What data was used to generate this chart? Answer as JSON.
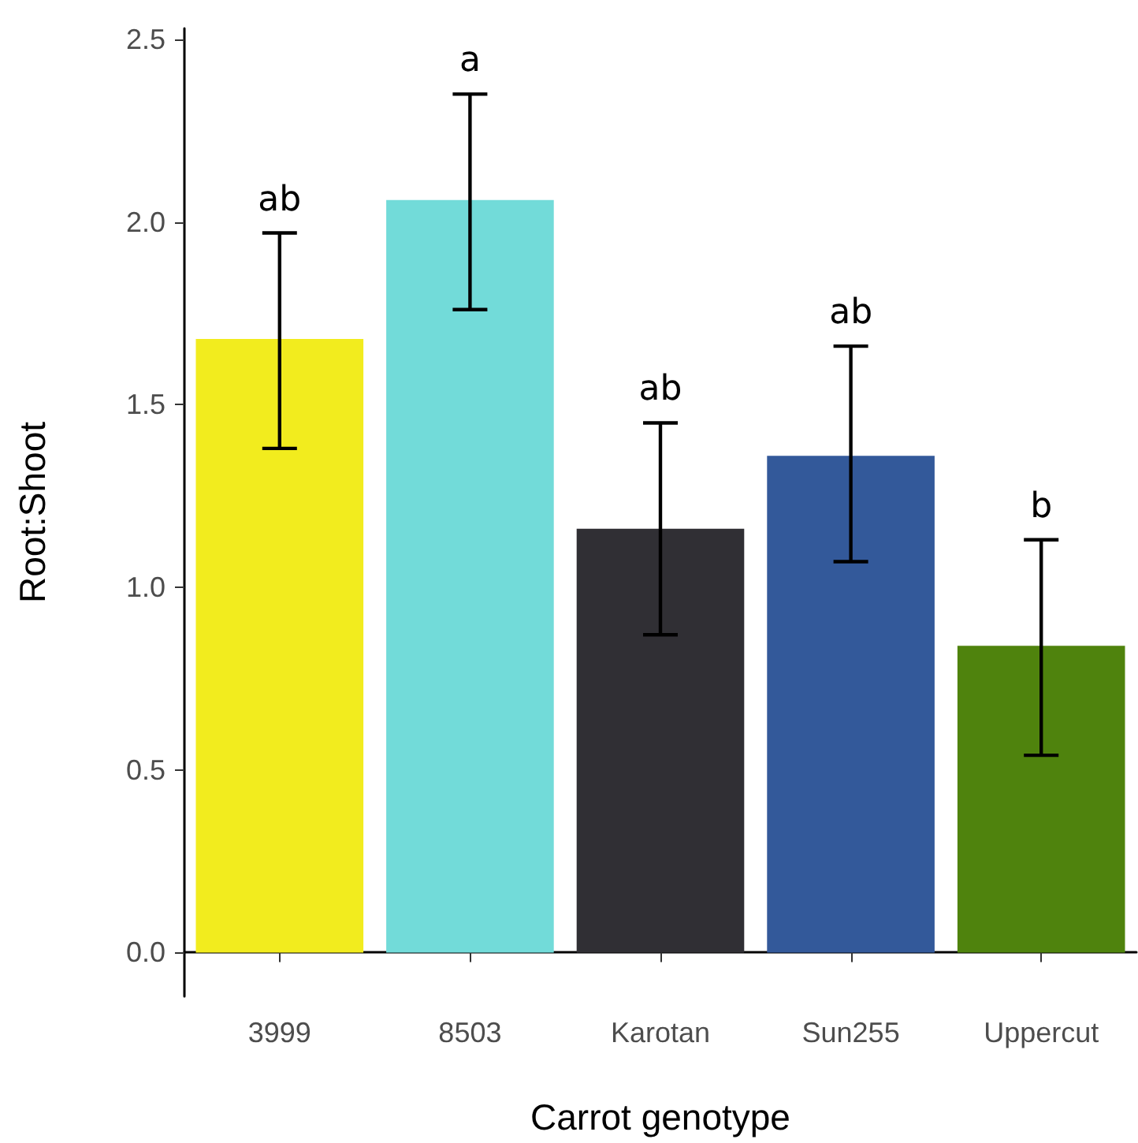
{
  "chart_data": {
    "type": "bar",
    "xlabel": "Carrot genotype",
    "ylabel": "Root:Shoot",
    "categories": [
      "3999",
      "8503",
      "Karotan",
      "Sun255",
      "Uppercut"
    ],
    "values": [
      1.68,
      2.06,
      1.16,
      1.36,
      0.84
    ],
    "colors": [
      "#f2ec1e",
      "#72dbd9",
      "#302f34",
      "#33599a",
      "#4f830d"
    ],
    "errors": [
      [
        1.38,
        1.97
      ],
      [
        1.76,
        2.35
      ],
      [
        0.87,
        1.45
      ],
      [
        1.07,
        1.66
      ],
      [
        0.54,
        1.13
      ]
    ],
    "ylim": [
      -0.12,
      2.53
    ],
    "yticks": [
      {
        "value": 0,
        "label": "0.0"
      },
      {
        "value": 0.5,
        "label": "0.5"
      },
      {
        "value": 1,
        "label": "1.0"
      },
      {
        "value": 1.5,
        "label": "1.5"
      },
      {
        "value": 2,
        "label": "2.0"
      },
      {
        "value": 2.5,
        "label": "2.5"
      }
    ],
    "grid": false,
    "annotations": [
      {
        "text": "ab",
        "x": "3999",
        "y": 1.97
      },
      {
        "text": "a",
        "x": "8503",
        "y": 2.35
      },
      {
        "text": "ab",
        "x": "Karotan",
        "y": 1.45
      },
      {
        "text": "ab",
        "x": "Sun255",
        "y": 1.66
      },
      {
        "text": "b",
        "x": "Uppercut",
        "y": 1.13
      }
    ]
  }
}
